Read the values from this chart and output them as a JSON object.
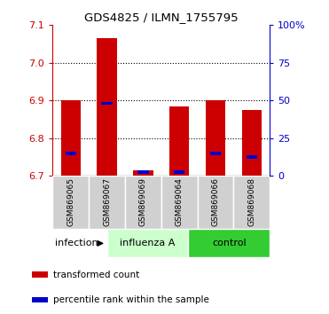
{
  "title": "GDS4825 / ILMN_1755795",
  "samples": [
    "GSM869065",
    "GSM869067",
    "GSM869069",
    "GSM869064",
    "GSM869066",
    "GSM869068"
  ],
  "red_values": [
    6.9,
    7.065,
    6.715,
    6.885,
    6.9,
    6.875
  ],
  "blue_values": [
    6.755,
    6.888,
    6.705,
    6.705,
    6.755,
    6.745
  ],
  "bar_bottom": 6.7,
  "ylim_left": [
    6.7,
    7.1
  ],
  "ylim_right": [
    0,
    100
  ],
  "yticks_left": [
    6.7,
    6.8,
    6.9,
    7.0,
    7.1
  ],
  "yticks_right": [
    0,
    25,
    50,
    75,
    100
  ],
  "ytick_labels_right": [
    "0",
    "25",
    "50",
    "75",
    "100%"
  ],
  "grid_values": [
    6.8,
    6.9,
    7.0
  ],
  "red_color": "#cc0000",
  "blue_color": "#0000cc",
  "bar_width": 0.55,
  "blue_bar_width": 0.3,
  "blue_bar_height": 0.009,
  "influenza_light": "#ccffcc",
  "control_green": "#33cc33",
  "legend_items": [
    "transformed count",
    "percentile rank within the sample"
  ],
  "legend_colors": [
    "#cc0000",
    "#0000cc"
  ],
  "tick_color_left": "#cc0000",
  "tick_color_right": "#0000cc",
  "figsize": [
    3.71,
    3.54
  ],
  "dpi": 100
}
